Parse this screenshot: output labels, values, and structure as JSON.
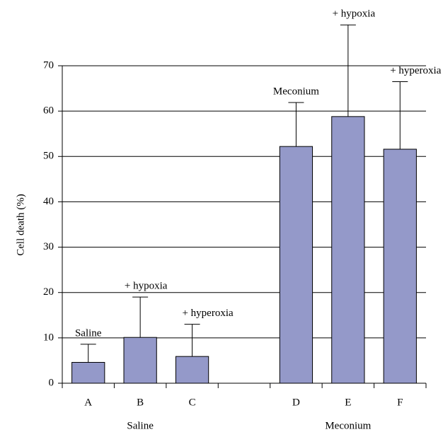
{
  "chart_data": {
    "type": "bar",
    "categories": [
      "A",
      "B",
      "C",
      null,
      "D",
      "E",
      "F"
    ],
    "values": [
      4.6,
      10.1,
      5.9,
      null,
      52.2,
      58.8,
      51.6
    ],
    "errors": [
      4.0,
      8.9,
      7.1,
      null,
      9.7,
      20.2,
      14.9
    ],
    "bar_labels": [
      "Saline",
      "+ hypoxia",
      "+ hyperoxia",
      null,
      "Meconium",
      "+ hypoxia",
      "+ hyperoxia"
    ],
    "groups": [
      "Saline",
      "Meconium"
    ],
    "ylabel": "Cell death (%)",
    "color": "#9499c9",
    "ylim": [
      0,
      70
    ],
    "yticks": [
      0,
      10,
      20,
      30,
      40,
      50,
      60,
      70
    ],
    "grid": true
  }
}
